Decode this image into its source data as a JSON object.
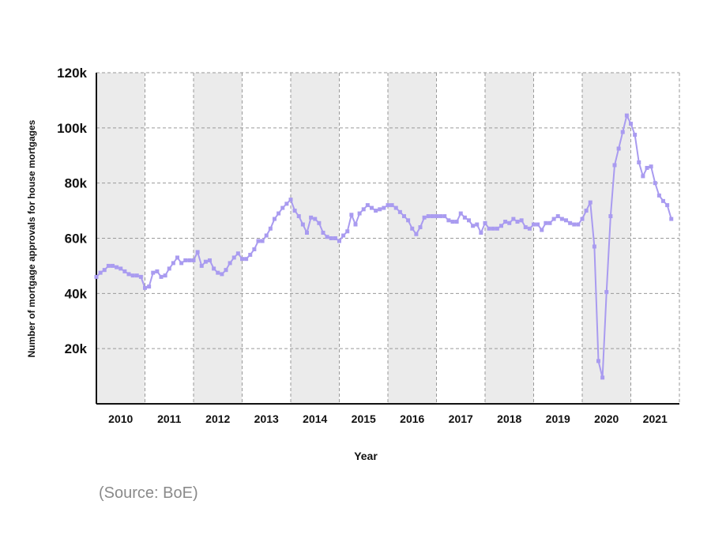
{
  "chart_data": {
    "type": "line",
    "title": "",
    "xlabel": "Year",
    "ylabel": "Number of mortgage approvals for house mortgages",
    "x_start": "2010-01",
    "x_end": "2021-12",
    "ylim": [
      0,
      120000
    ],
    "y_ticks": [
      {
        "value": 20000,
        "label": "20k"
      },
      {
        "value": 40000,
        "label": "40k"
      },
      {
        "value": 60000,
        "label": "60k"
      },
      {
        "value": 80000,
        "label": "80k"
      },
      {
        "value": 100000,
        "label": "100k"
      },
      {
        "value": 120000,
        "label": "120k"
      }
    ],
    "x_ticks": [
      "2010",
      "2011",
      "2012",
      "2013",
      "2014",
      "2015",
      "2016",
      "2017",
      "2018",
      "2019",
      "2020",
      "2021"
    ],
    "shaded_years": [
      "2010",
      "2012",
      "2014",
      "2016",
      "2018",
      "2020"
    ],
    "grid": true,
    "line_color": "#a99bf0",
    "shade_color": "#ebebeb",
    "series": [
      {
        "values": [
          {
            "x": "2010-01",
            "y": 46000
          },
          {
            "x": "2010-02",
            "y": 47500
          },
          {
            "x": "2010-03",
            "y": 48500
          },
          {
            "x": "2010-04",
            "y": 50000
          },
          {
            "x": "2010-05",
            "y": 50000
          },
          {
            "x": "2010-06",
            "y": 49500
          },
          {
            "x": "2010-07",
            "y": 49000
          },
          {
            "x": "2010-08",
            "y": 48000
          },
          {
            "x": "2010-09",
            "y": 47000
          },
          {
            "x": "2010-10",
            "y": 46500
          },
          {
            "x": "2010-11",
            "y": 46500
          },
          {
            "x": "2010-12",
            "y": 46000
          },
          {
            "x": "2011-01",
            "y": 42000
          },
          {
            "x": "2011-02",
            "y": 42500
          },
          {
            "x": "2011-03",
            "y": 47500
          },
          {
            "x": "2011-04",
            "y": 48000
          },
          {
            "x": "2011-05",
            "y": 46000
          },
          {
            "x": "2011-06",
            "y": 46500
          },
          {
            "x": "2011-07",
            "y": 49000
          },
          {
            "x": "2011-08",
            "y": 51000
          },
          {
            "x": "2011-09",
            "y": 53000
          },
          {
            "x": "2011-10",
            "y": 51000
          },
          {
            "x": "2011-11",
            "y": 52000
          },
          {
            "x": "2011-12",
            "y": 52000
          },
          {
            "x": "2012-01",
            "y": 52000
          },
          {
            "x": "2012-02",
            "y": 55000
          },
          {
            "x": "2012-03",
            "y": 50000
          },
          {
            "x": "2012-04",
            "y": 51500
          },
          {
            "x": "2012-05",
            "y": 52000
          },
          {
            "x": "2012-06",
            "y": 49000
          },
          {
            "x": "2012-07",
            "y": 47500
          },
          {
            "x": "2012-08",
            "y": 47000
          },
          {
            "x": "2012-09",
            "y": 48500
          },
          {
            "x": "2012-10",
            "y": 51000
          },
          {
            "x": "2012-11",
            "y": 53000
          },
          {
            "x": "2012-12",
            "y": 54500
          },
          {
            "x": "2013-01",
            "y": 52500
          },
          {
            "x": "2013-02",
            "y": 52500
          },
          {
            "x": "2013-03",
            "y": 54000
          },
          {
            "x": "2013-04",
            "y": 56000
          },
          {
            "x": "2013-05",
            "y": 59000
          },
          {
            "x": "2013-06",
            "y": 59000
          },
          {
            "x": "2013-07",
            "y": 61000
          },
          {
            "x": "2013-08",
            "y": 63500
          },
          {
            "x": "2013-09",
            "y": 67000
          },
          {
            "x": "2013-10",
            "y": 69000
          },
          {
            "x": "2013-11",
            "y": 71000
          },
          {
            "x": "2013-12",
            "y": 72500
          },
          {
            "x": "2014-01",
            "y": 74000
          },
          {
            "x": "2014-02",
            "y": 70000
          },
          {
            "x": "2014-03",
            "y": 68000
          },
          {
            "x": "2014-04",
            "y": 65000
          },
          {
            "x": "2014-05",
            "y": 62000
          },
          {
            "x": "2014-06",
            "y": 67500
          },
          {
            "x": "2014-07",
            "y": 67000
          },
          {
            "x": "2014-08",
            "y": 65500
          },
          {
            "x": "2014-09",
            "y": 62000
          },
          {
            "x": "2014-10",
            "y": 60500
          },
          {
            "x": "2014-11",
            "y": 60000
          },
          {
            "x": "2014-12",
            "y": 60000
          },
          {
            "x": "2015-01",
            "y": 59000
          },
          {
            "x": "2015-02",
            "y": 61000
          },
          {
            "x": "2015-03",
            "y": 62500
          },
          {
            "x": "2015-04",
            "y": 68500
          },
          {
            "x": "2015-05",
            "y": 65000
          },
          {
            "x": "2015-06",
            "y": 69000
          },
          {
            "x": "2015-07",
            "y": 70500
          },
          {
            "x": "2015-08",
            "y": 72000
          },
          {
            "x": "2015-09",
            "y": 71000
          },
          {
            "x": "2015-10",
            "y": 70000
          },
          {
            "x": "2015-11",
            "y": 70500
          },
          {
            "x": "2015-12",
            "y": 71000
          },
          {
            "x": "2016-01",
            "y": 72000
          },
          {
            "x": "2016-02",
            "y": 72000
          },
          {
            "x": "2016-03",
            "y": 71000
          },
          {
            "x": "2016-04",
            "y": 69500
          },
          {
            "x": "2016-05",
            "y": 68000
          },
          {
            "x": "2016-06",
            "y": 66500
          },
          {
            "x": "2016-07",
            "y": 63500
          },
          {
            "x": "2016-08",
            "y": 61500
          },
          {
            "x": "2016-09",
            "y": 64000
          },
          {
            "x": "2016-10",
            "y": 67500
          },
          {
            "x": "2016-11",
            "y": 68000
          },
          {
            "x": "2016-12",
            "y": 68000
          },
          {
            "x": "2017-01",
            "y": 68000
          },
          {
            "x": "2017-02",
            "y": 68000
          },
          {
            "x": "2017-03",
            "y": 68000
          },
          {
            "x": "2017-04",
            "y": 66500
          },
          {
            "x": "2017-05",
            "y": 66000
          },
          {
            "x": "2017-06",
            "y": 66000
          },
          {
            "x": "2017-07",
            "y": 69000
          },
          {
            "x": "2017-08",
            "y": 67500
          },
          {
            "x": "2017-09",
            "y": 66500
          },
          {
            "x": "2017-10",
            "y": 64500
          },
          {
            "x": "2017-11",
            "y": 65000
          },
          {
            "x": "2017-12",
            "y": 62000
          },
          {
            "x": "2018-01",
            "y": 65500
          },
          {
            "x": "2018-02",
            "y": 63500
          },
          {
            "x": "2018-03",
            "y": 63500
          },
          {
            "x": "2018-04",
            "y": 63500
          },
          {
            "x": "2018-05",
            "y": 64500
          },
          {
            "x": "2018-06",
            "y": 66000
          },
          {
            "x": "2018-07",
            "y": 65500
          },
          {
            "x": "2018-08",
            "y": 67000
          },
          {
            "x": "2018-09",
            "y": 66000
          },
          {
            "x": "2018-10",
            "y": 66500
          },
          {
            "x": "2018-11",
            "y": 64000
          },
          {
            "x": "2018-12",
            "y": 63500
          },
          {
            "x": "2019-01",
            "y": 65000
          },
          {
            "x": "2019-02",
            "y": 65000
          },
          {
            "x": "2019-03",
            "y": 63000
          },
          {
            "x": "2019-04",
            "y": 65500
          },
          {
            "x": "2019-05",
            "y": 65500
          },
          {
            "x": "2019-06",
            "y": 67000
          },
          {
            "x": "2019-07",
            "y": 68000
          },
          {
            "x": "2019-08",
            "y": 67000
          },
          {
            "x": "2019-09",
            "y": 66500
          },
          {
            "x": "2019-10",
            "y": 65500
          },
          {
            "x": "2019-11",
            "y": 65000
          },
          {
            "x": "2019-12",
            "y": 65000
          },
          {
            "x": "2020-01",
            "y": 67000
          },
          {
            "x": "2020-02",
            "y": 70000
          },
          {
            "x": "2020-03",
            "y": 73000
          },
          {
            "x": "2020-04",
            "y": 57000
          },
          {
            "x": "2020-05",
            "y": 15500
          },
          {
            "x": "2020-06",
            "y": 9500
          },
          {
            "x": "2020-07",
            "y": 40500
          },
          {
            "x": "2020-08",
            "y": 68000
          },
          {
            "x": "2020-09",
            "y": 86500
          },
          {
            "x": "2020-10",
            "y": 92500
          },
          {
            "x": "2020-11",
            "y": 98500
          },
          {
            "x": "2020-12",
            "y": 104500
          },
          {
            "x": "2021-01",
            "y": 101500
          },
          {
            "x": "2021-02",
            "y": 97500
          },
          {
            "x": "2021-03",
            "y": 87500
          },
          {
            "x": "2021-04",
            "y": 82500
          },
          {
            "x": "2021-05",
            "y": 85500
          },
          {
            "x": "2021-06",
            "y": 86000
          },
          {
            "x": "2021-07",
            "y": 80000
          },
          {
            "x": "2021-08",
            "y": 75500
          },
          {
            "x": "2021-09",
            "y": 73500
          },
          {
            "x": "2021-10",
            "y": 72000
          },
          {
            "x": "2021-11",
            "y": 67000
          }
        ]
      }
    ]
  },
  "source_note": "(Source: BoE)"
}
